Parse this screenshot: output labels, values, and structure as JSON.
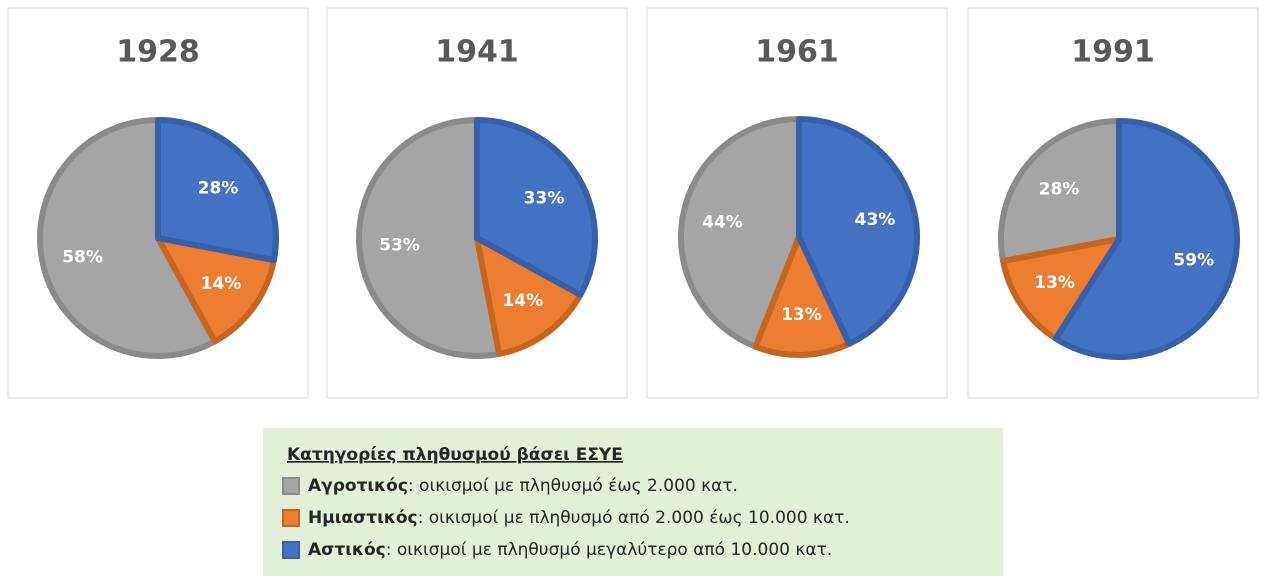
{
  "chart_data": [
    {
      "type": "pie",
      "title": "1928",
      "values": [
        58,
        14,
        28
      ],
      "value_labels": [
        "58%",
        "14%",
        "28%"
      ]
    },
    {
      "type": "pie",
      "title": "1941",
      "values": [
        53,
        14,
        33
      ],
      "value_labels": [
        "53%",
        "14%",
        "33%"
      ]
    },
    {
      "type": "pie",
      "title": "1961",
      "values": [
        44,
        13,
        43
      ],
      "value_labels": [
        "44%",
        "13%",
        "43%"
      ]
    },
    {
      "type": "pie",
      "title": "1991",
      "values": [
        28,
        13,
        59
      ],
      "value_labels": [
        "28%",
        "13%",
        "59%"
      ]
    }
  ],
  "direction": "counterclockwise",
  "legend": {
    "title": "Κατηγορίες πληθυσμού βάσει ΕΣΥΕ",
    "items": [
      {
        "name": "Αγροτικός",
        "description": ": οικισμοί με πληθυσμό έως 2.000 κατ.",
        "color": "#a5a5a5",
        "edge": "#8a8a8a"
      },
      {
        "name": "Ημιαστικός",
        "description": ": οικισμοί με πληθυσμό από 2.000 έως 10.000 κατ.",
        "color": "#ed7d31",
        "edge": "#c5651f"
      },
      {
        "name": "Αστικός",
        "description": ": οικισμοί με πληθυσμό μεγαλύτερο από 10.000 κατ.",
        "color": "#4472c4",
        "edge": "#3760a8"
      }
    ]
  }
}
